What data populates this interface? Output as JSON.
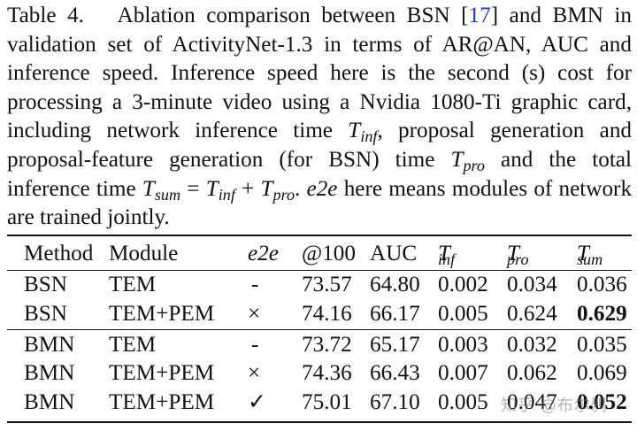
{
  "caption": {
    "label": "Table 4.",
    "cite": "17",
    "part1": "Ablation comparison between BSN [",
    "part2": "] and BMN in validation set of ActivityNet-1.3 in terms of AR@AN, AUC and inference speed. Inference speed here is the second (s) cost for processing a 3-minute video using a Nvidia 1080-Ti graphic card, including network inference time",
    "t_inf_base": "T",
    "t_inf_sub": "inf",
    "part3": ", proposal generation and proposal-feature generation (for BSN) time",
    "t_pro_base": "T",
    "t_pro_sub": "pro",
    "part4": "and the total inference time",
    "eq_lhs_base": "T",
    "eq_lhs_sub": "sum",
    "eq_mid": "=",
    "eq_r1_base": "T",
    "eq_r1_sub": "inf",
    "eq_plus": "+",
    "eq_r2_base": "T",
    "eq_r2_sub": "pro",
    "eq_end": ".",
    "e2e": "e2e",
    "part5": "here means modules of network are trained jointly."
  },
  "table": {
    "headers": {
      "method": "Method",
      "module": "Module",
      "e2e": "e2e",
      "ar": "@100",
      "auc": "AUC",
      "t_inf_base": "T",
      "t_inf_sub": "inf",
      "t_pro_base": "T",
      "t_pro_sub": "pro",
      "t_sum_base": "T",
      "t_sum_sub": "sum"
    },
    "rows": [
      {
        "method": "BSN",
        "module": "TEM",
        "e2e": "-",
        "ar": "73.57",
        "auc": "64.80",
        "t_inf": "0.002",
        "t_pro": "0.034",
        "t_sum": "0.036"
      },
      {
        "method": "BSN",
        "module": "TEM+PEM",
        "e2e": "×",
        "ar": "74.16",
        "auc": "66.17",
        "t_inf": "0.005",
        "t_pro": "0.624",
        "t_sum": "0.629"
      },
      {
        "method": "BMN",
        "module": "TEM",
        "e2e": "-",
        "ar": "73.72",
        "auc": "65.17",
        "t_inf": "0.003",
        "t_pro": "0.032",
        "t_sum": "0.035"
      },
      {
        "method": "BMN",
        "module": "TEM+PEM",
        "e2e": "×",
        "ar": "74.36",
        "auc": "66.43",
        "t_inf": "0.007",
        "t_pro": "0.062",
        "t_sum": "0.069"
      },
      {
        "method": "BMN",
        "module": "TEM+PEM",
        "e2e": "✓",
        "ar": "75.01",
        "auc": "67.10",
        "t_inf": "0.005",
        "t_pro": "0.047",
        "t_sum": "0.052"
      }
    ]
  },
  "watermark": "知乎 @布尔鸦",
  "colors": {
    "cite": "#1a3fd6",
    "text": "#111111"
  }
}
